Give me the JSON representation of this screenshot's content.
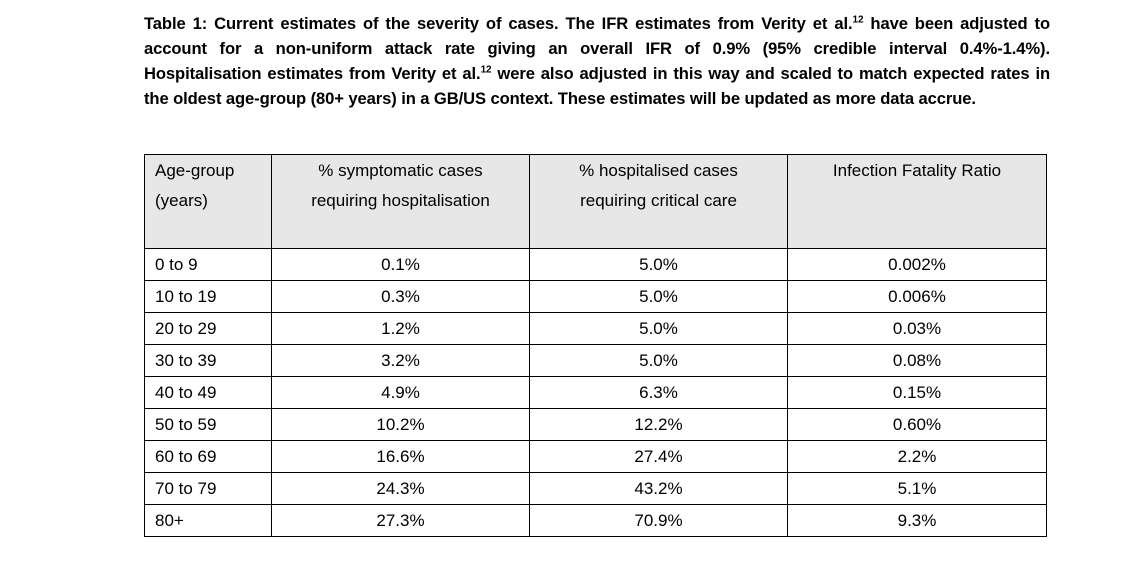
{
  "caption": {
    "part1": "Table 1: Current estimates of the severity of cases. The IFR estimates from Verity et al.",
    "ref1": "12",
    "part2": " have been adjusted to account for a non-uniform attack rate giving an overall IFR of 0.9% (95% credible interval 0.4%-1.4%). Hospitalisation estimates from Verity et al.",
    "ref2": "12",
    "part3": " were also adjusted in this way and scaled to match expected rates in the oldest age-group (80+ years) in a GB/US context. These estimates will be updated as more data accrue."
  },
  "table": {
    "headers": [
      {
        "line1": "Age-group",
        "line2": "(years)"
      },
      {
        "line1": "% symptomatic cases",
        "line2": "requiring hospitalisation"
      },
      {
        "line1": "% hospitalised cases",
        "line2": "requiring critical care"
      },
      {
        "line1": "Infection Fatality Ratio",
        "line2": ""
      }
    ],
    "rows": [
      [
        "0 to 9",
        "0.1%",
        "5.0%",
        "0.002%"
      ],
      [
        "10 to 19",
        "0.3%",
        "5.0%",
        "0.006%"
      ],
      [
        "20 to 29",
        "1.2%",
        "5.0%",
        "0.03%"
      ],
      [
        "30 to 39",
        "3.2%",
        "5.0%",
        "0.08%"
      ],
      [
        "40 to 49",
        "4.9%",
        "6.3%",
        "0.15%"
      ],
      [
        "50 to 59",
        "10.2%",
        "12.2%",
        "0.60%"
      ],
      [
        "60 to 69",
        "16.6%",
        "27.4%",
        "2.2%"
      ],
      [
        "70 to 79",
        "24.3%",
        "43.2%",
        "5.1%"
      ],
      [
        "80+",
        "27.3%",
        "70.9%",
        "9.3%"
      ]
    ]
  }
}
